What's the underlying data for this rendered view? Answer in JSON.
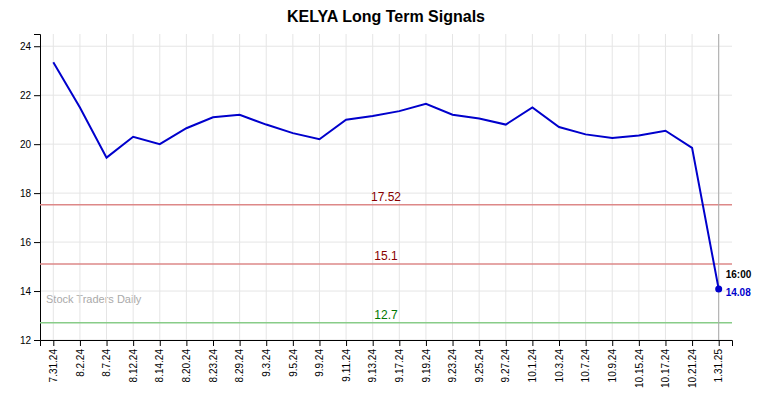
{
  "chart_data": {
    "type": "line",
    "title": "KELYA Long Term Signals",
    "categories": [
      "7.31.24",
      "8.2.24",
      "8.7.24",
      "8.12.24",
      "8.14.24",
      "8.20.24",
      "8.23.24",
      "8.29.24",
      "9.3.24",
      "9.5.24",
      "9.9.24",
      "9.11.24",
      "9.13.24",
      "9.17.24",
      "9.19.24",
      "9.23.24",
      "9.25.24",
      "9.27.24",
      "10.1.24",
      "10.3.24",
      "10.7.24",
      "10.9.24",
      "10.15.24",
      "10.17.24",
      "10.21.24",
      "1.31.25"
    ],
    "values": [
      23.35,
      21.5,
      19.45,
      20.3,
      20.0,
      20.65,
      21.1,
      21.2,
      20.8,
      20.45,
      20.2,
      21.0,
      21.15,
      21.35,
      21.65,
      21.2,
      21.05,
      20.8,
      21.5,
      20.7,
      20.4,
      20.25,
      20.35,
      20.55,
      19.85,
      14.08
    ],
    "color": "#0000cc",
    "ylim": [
      12.0,
      24.5
    ],
    "yticks": [
      12,
      14,
      16,
      18,
      20,
      22,
      24
    ],
    "grid": true,
    "hlines": [
      {
        "value": 17.52,
        "label": "17.52",
        "color": "#dd8888",
        "label_color": "#880000"
      },
      {
        "value": 15.1,
        "label": "15.1",
        "color": "#dd8888",
        "label_color": "#880000"
      },
      {
        "value": 12.7,
        "label": "12.7",
        "color": "#88cc88",
        "label_color": "#007700"
      }
    ],
    "end_labels": [
      {
        "text": "16:00"
      },
      {
        "text": "14.08",
        "color": "#0000cc"
      }
    ],
    "watermark": {
      "text": "Stock Traders Daily",
      "color": "#aaaaaa"
    }
  }
}
